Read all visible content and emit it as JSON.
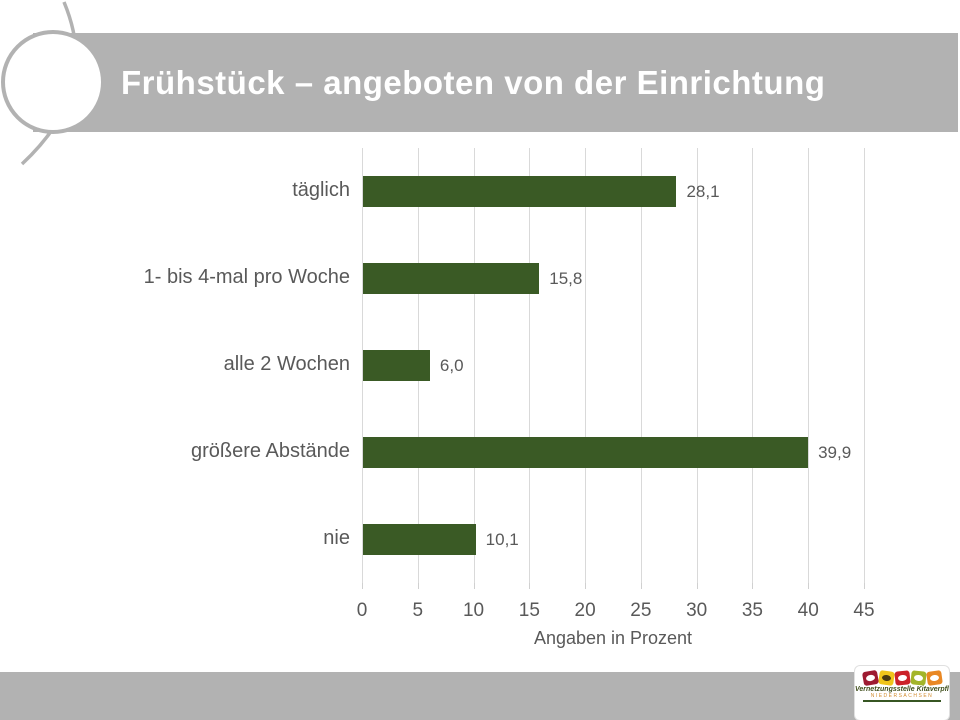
{
  "slide": {
    "title": "Frühstück – angeboten von der Einrichtung",
    "colors": {
      "banner_gray": "#b2b2b2",
      "bar_green": "#3a5a25",
      "gridline_gray": "#d9d9d9",
      "text_gray": "#595959",
      "title_white": "#ffffff"
    }
  },
  "chart_data": {
    "type": "bar",
    "orientation": "horizontal",
    "title": "Frühstück – angeboten von der Einrichtung",
    "categories": [
      "täglich",
      "1- bis 4-mal pro Woche",
      "alle 2 Wochen",
      "größere Abstände",
      "nie"
    ],
    "values": [
      28.1,
      15.8,
      6.0,
      39.9,
      10.1
    ],
    "value_labels": [
      "28,1",
      "15,8",
      "6,0",
      "39,9",
      "10,1"
    ],
    "xlabel": "Angaben in Prozent",
    "ylabel": "",
    "xlim": [
      0,
      45
    ],
    "xticks": [
      0,
      5,
      10,
      15,
      20,
      25,
      30,
      35,
      40,
      45
    ],
    "grid": true,
    "legend": false,
    "bar_color": "#3a5a25"
  },
  "footer": {
    "logo": {
      "line1": "Vernetzungsstelle Kitaverpflegung",
      "line2": "NIEDERSACHSEN",
      "tile_colors": [
        "#9e1b32",
        "#f0c51a",
        "#cc2229",
        "#a3b52a",
        "#e98824"
      ],
      "tile_names": [
        "eggs-tile-icon",
        "bee-tile-icon",
        "figures-tile-icon",
        "plate-tile-icon",
        "pot-tile-icon"
      ]
    }
  }
}
